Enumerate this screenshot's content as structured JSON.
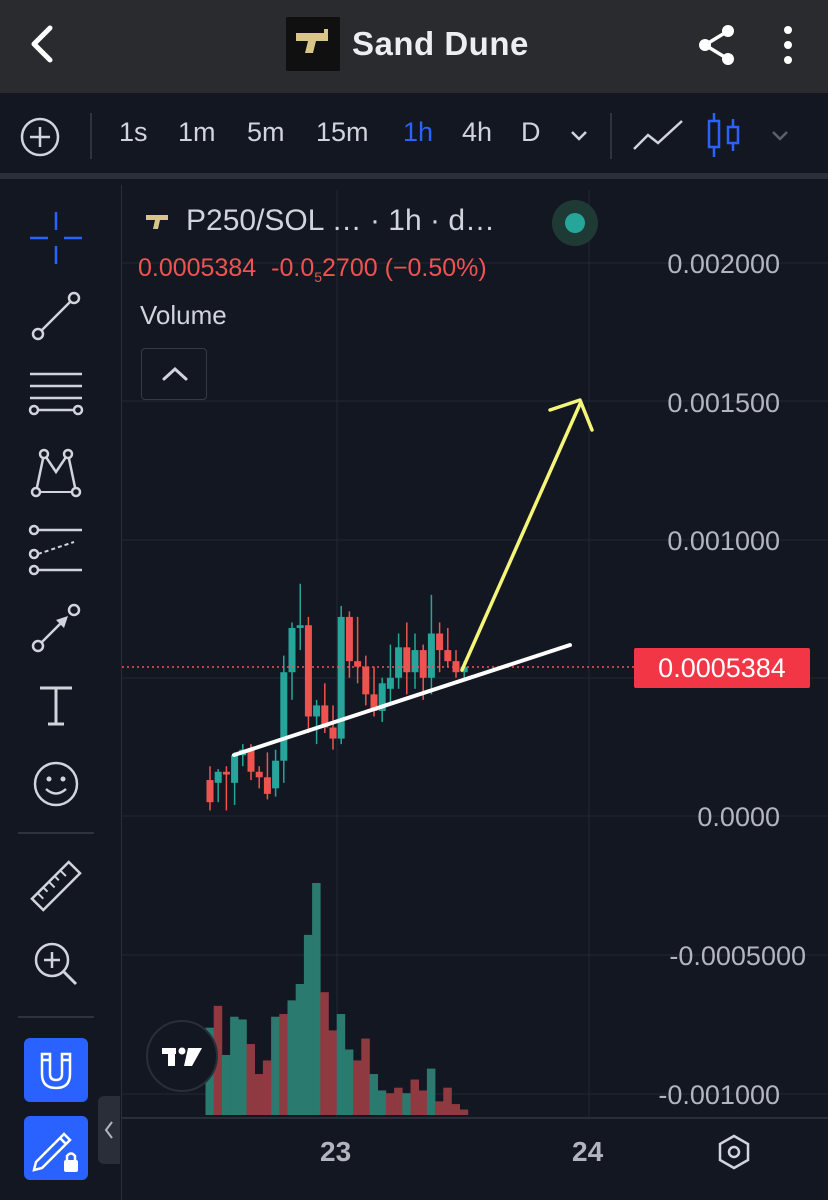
{
  "header": {
    "title": "Sand Dune",
    "back_icon": "chevron-left-icon",
    "share_icon": "share-icon",
    "more_icon": "more-vertical-icon"
  },
  "timeframes": {
    "items": [
      "1s",
      "1m",
      "5m",
      "15m",
      "1h",
      "4h",
      "D"
    ],
    "active": "1h"
  },
  "legend": {
    "symbol": "P250/SOL … · 1h · d…",
    "price": "0.0005384",
    "change_prefix": "-0.0",
    "change_sub": "5",
    "change_suffix": "2700 (−0.50%)",
    "volume_label": "Volume",
    "status_color": "#26a69a"
  },
  "price_axis": {
    "labels": [
      "0.002000",
      "0.001500",
      "0.001000",
      "0.0000",
      "-0.0005000",
      "-0.001000"
    ],
    "current_price_tag": "0.0005384"
  },
  "time_axis": {
    "labels": [
      "23",
      "24"
    ]
  },
  "colors": {
    "up": "#26a69a",
    "down": "#ef5350",
    "accent": "#2962ff",
    "arrow": "#f5f57a",
    "trendline": "#ffffff",
    "background": "#131722"
  },
  "chart_data": {
    "type": "candlestick",
    "interval": "1h",
    "y_range": [
      -0.001,
      0.002
    ],
    "volume_bars": [
      32,
      40,
      22,
      36,
      35,
      26,
      15,
      20,
      36,
      37,
      42,
      48,
      66,
      85,
      45,
      31,
      37,
      24,
      20,
      28,
      15,
      9,
      8,
      10,
      8,
      13,
      9,
      17,
      5,
      10,
      4,
      2
    ],
    "volume_direction": [
      "up",
      "down",
      "up",
      "up",
      "up",
      "down",
      "down",
      "down",
      "up",
      "down",
      "up",
      "up",
      "up",
      "up",
      "down",
      "down",
      "up",
      "up",
      "down",
      "down",
      "up",
      "up",
      "down",
      "down",
      "up",
      "down",
      "down",
      "up",
      "down",
      "down",
      "down",
      "down"
    ],
    "candles": [
      {
        "o": 0.00013,
        "h": 0.00018,
        "l": 2e-05,
        "c": 5e-05
      },
      {
        "o": 0.00012,
        "h": 0.00017,
        "l": 5e-05,
        "c": 0.00016
      },
      {
        "o": 0.00016,
        "h": 0.00018,
        "l": 2e-05,
        "c": 0.00015
      },
      {
        "o": 0.00012,
        "h": 0.00023,
        "l": 4e-05,
        "c": 0.00022
      },
      {
        "o": 0.00022,
        "h": 0.00026,
        "l": 0.00018,
        "c": 0.00024
      },
      {
        "o": 0.00024,
        "h": 0.00026,
        "l": 0.00013,
        "c": 0.00016
      },
      {
        "o": 0.00016,
        "h": 0.00018,
        "l": 0.0001,
        "c": 0.00014
      },
      {
        "o": 0.00014,
        "h": 0.00023,
        "l": 6e-05,
        "c": 8e-05
      },
      {
        "o": 0.0001,
        "h": 0.00024,
        "l": 7e-05,
        "c": 0.0002
      },
      {
        "o": 0.0002,
        "h": 0.00058,
        "l": 0.00012,
        "c": 0.00052
      },
      {
        "o": 0.00052,
        "h": 0.0007,
        "l": 0.00042,
        "c": 0.00068
      },
      {
        "o": 0.00068,
        "h": 0.00084,
        "l": 0.0006,
        "c": 0.00069
      },
      {
        "o": 0.00069,
        "h": 0.00072,
        "l": 0.0003,
        "c": 0.00036
      },
      {
        "o": 0.00036,
        "h": 0.00042,
        "l": 0.00026,
        "c": 0.0004
      },
      {
        "o": 0.0004,
        "h": 0.00048,
        "l": 0.0003,
        "c": 0.00032
      },
      {
        "o": 0.00032,
        "h": 0.0004,
        "l": 0.00024,
        "c": 0.00028
      },
      {
        "o": 0.00028,
        "h": 0.00076,
        "l": 0.00026,
        "c": 0.00072
      },
      {
        "o": 0.00072,
        "h": 0.00074,
        "l": 0.0005,
        "c": 0.00056
      },
      {
        "o": 0.00056,
        "h": 0.00072,
        "l": 0.00048,
        "c": 0.00054
      },
      {
        "o": 0.00054,
        "h": 0.00058,
        "l": 0.0004,
        "c": 0.00044
      },
      {
        "o": 0.00044,
        "h": 0.00054,
        "l": 0.00036,
        "c": 0.00038
      },
      {
        "o": 0.00038,
        "h": 0.0005,
        "l": 0.00034,
        "c": 0.00048
      },
      {
        "o": 0.00046,
        "h": 0.00062,
        "l": 0.0004,
        "c": 0.0005
      },
      {
        "o": 0.0005,
        "h": 0.00066,
        "l": 0.00046,
        "c": 0.00061
      },
      {
        "o": 0.00061,
        "h": 0.0007,
        "l": 0.00044,
        "c": 0.00052
      },
      {
        "o": 0.00052,
        "h": 0.00066,
        "l": 0.00046,
        "c": 0.0006
      },
      {
        "o": 0.0006,
        "h": 0.00062,
        "l": 0.00042,
        "c": 0.0005
      },
      {
        "o": 0.0005,
        "h": 0.0008,
        "l": 0.00044,
        "c": 0.00066
      },
      {
        "o": 0.00066,
        "h": 0.0007,
        "l": 0.00052,
        "c": 0.0006
      },
      {
        "o": 0.0006,
        "h": 0.00068,
        "l": 0.00054,
        "c": 0.00056
      },
      {
        "o": 0.00056,
        "h": 0.0006,
        "l": 0.0005,
        "c": 0.00052
      },
      {
        "o": 0.00052,
        "h": 0.00056,
        "l": 0.0005,
        "c": 0.00054
      }
    ]
  },
  "left_tools": [
    "crosshair-icon",
    "trend-line-icon",
    "fib-levels-icon",
    "pattern-icon",
    "forecast-icon",
    "arrow-icon",
    "text-icon",
    "emoji-icon",
    "ruler-icon",
    "zoom-in-icon",
    "magnet-icon",
    "lock-drawings-icon"
  ]
}
